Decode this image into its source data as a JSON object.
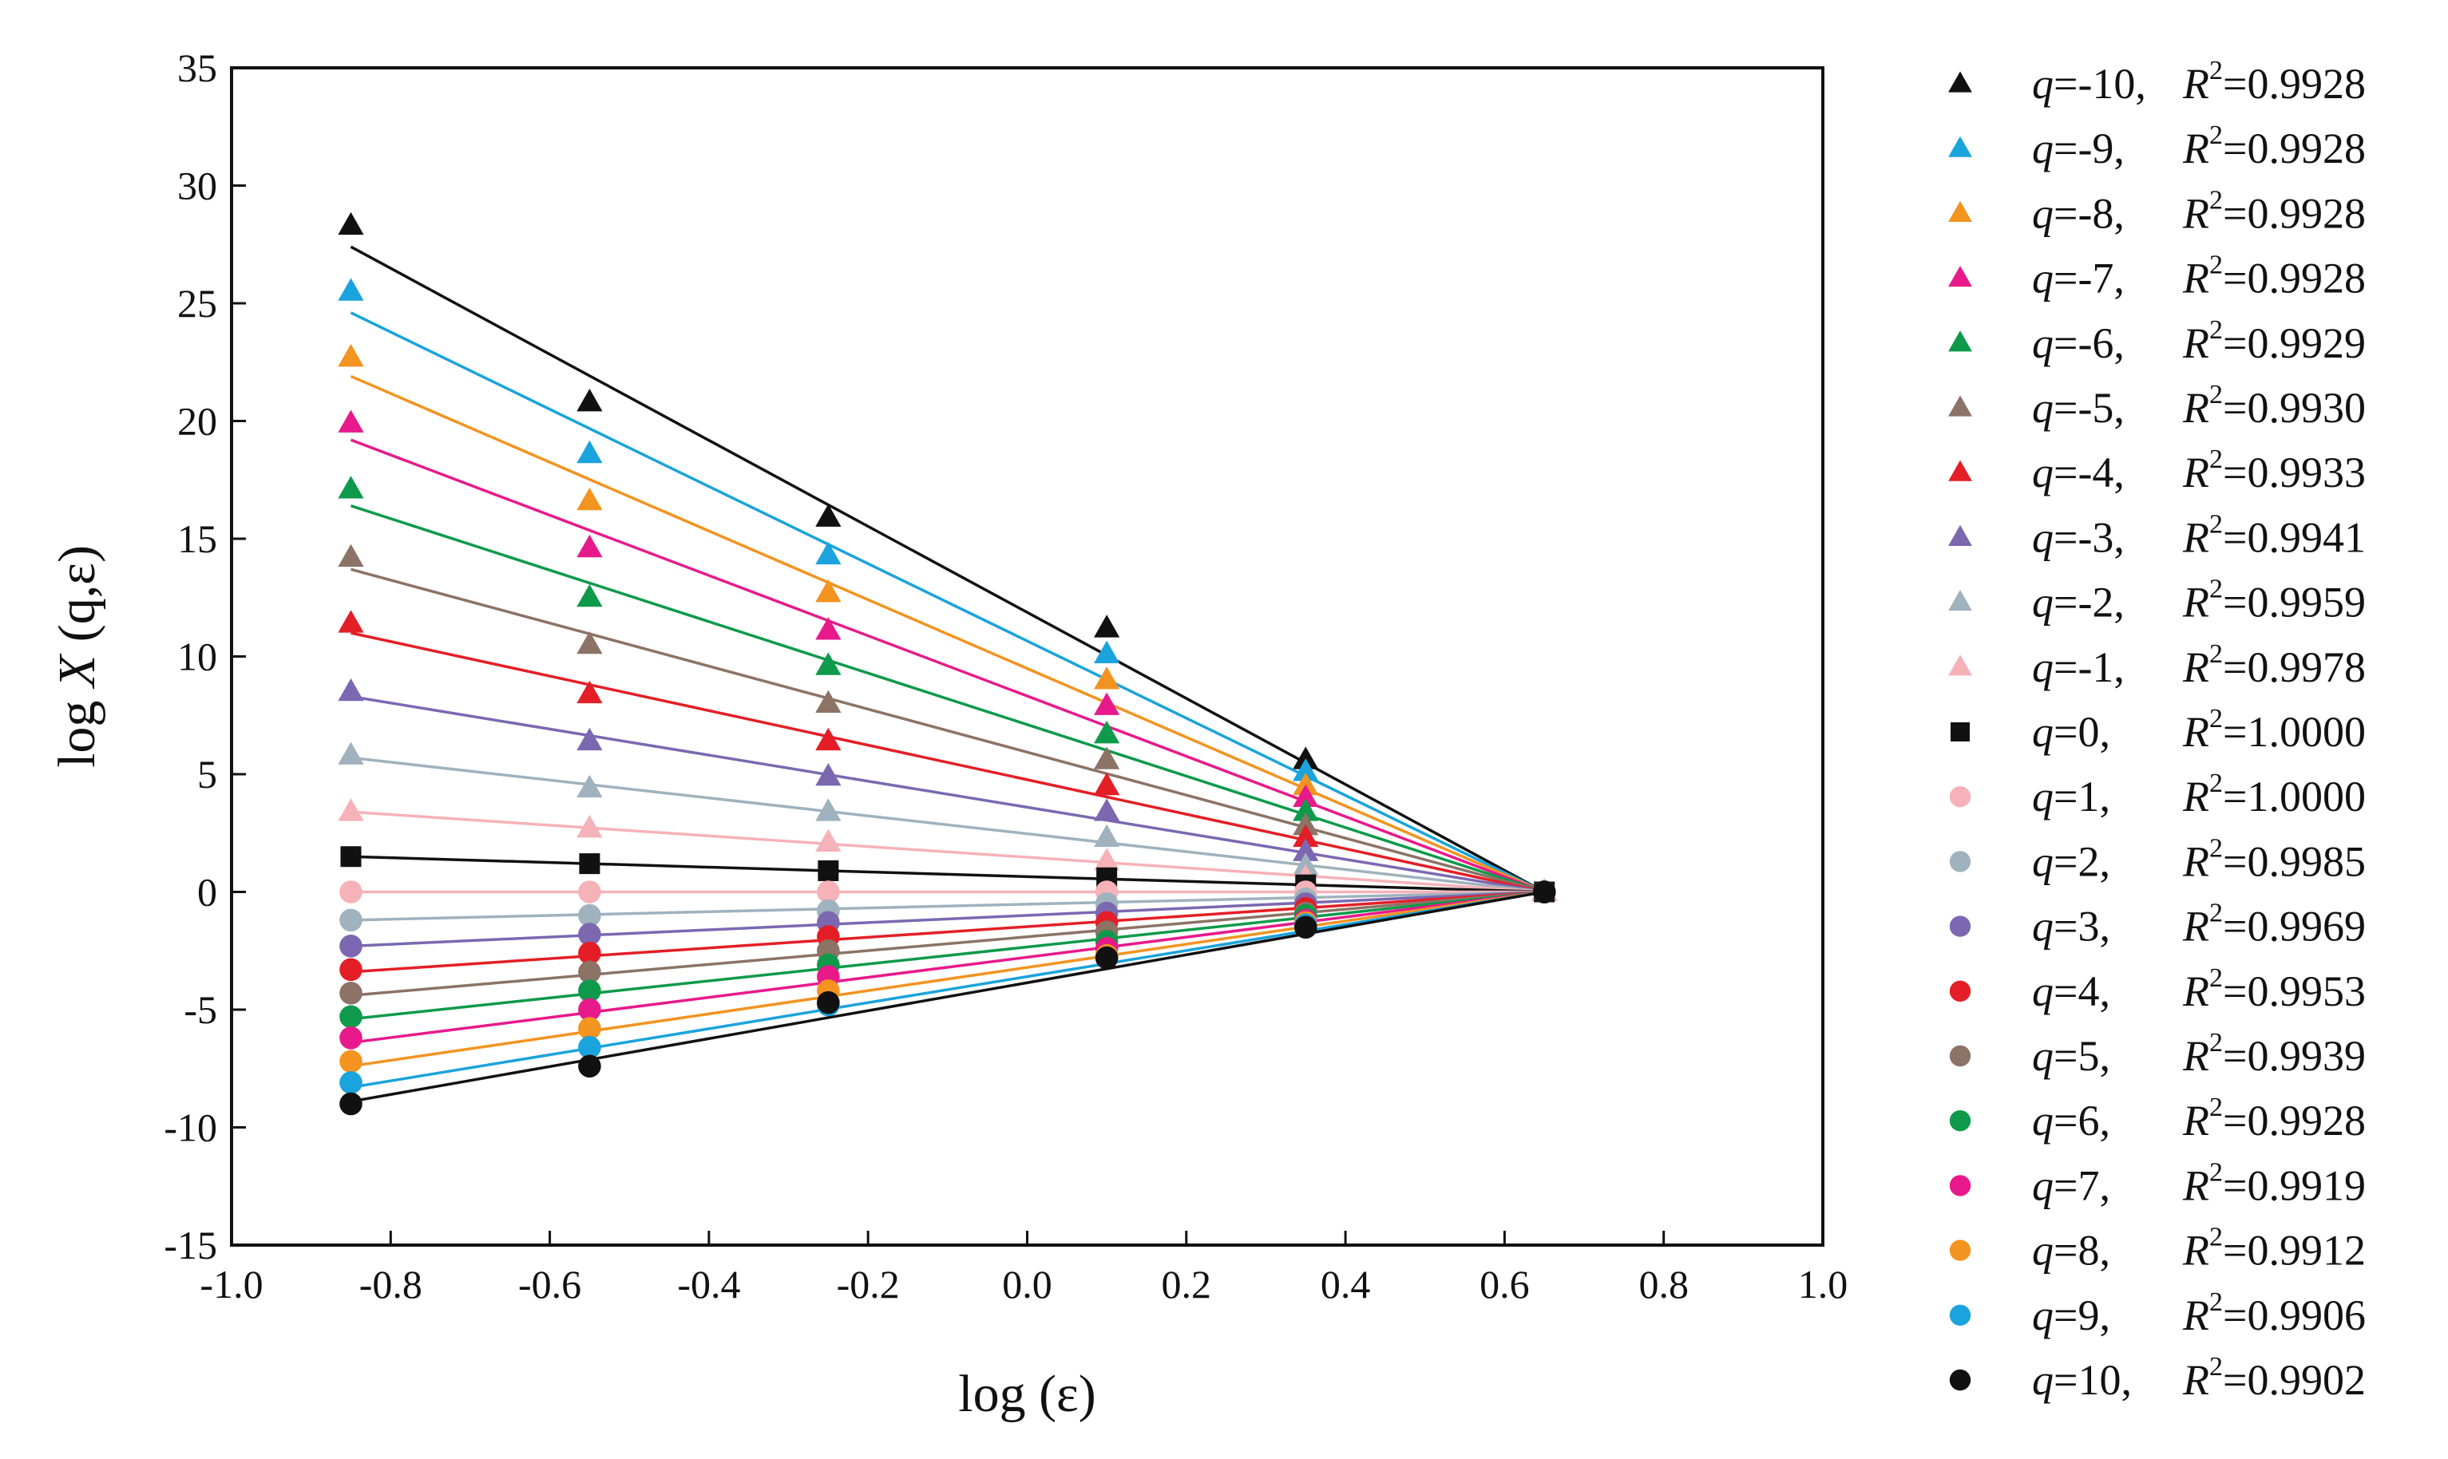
{
  "chart_data": {
    "type": "scatter",
    "title": "",
    "xlabel": "log (ε)",
    "ylabel_parts": {
      "prefix": "log ",
      "var": "X",
      "args": " (q,ε)"
    },
    "xlim": [
      -1.0,
      1.0
    ],
    "ylim": [
      -15,
      35
    ],
    "xticks": [
      "-1.0",
      "-0.8",
      "-0.6",
      "-0.4",
      "-0.2",
      "0.0",
      "0.2",
      "0.4",
      "0.6",
      "0.8",
      "1.0"
    ],
    "yticks": [
      "-15",
      "-10",
      "-5",
      "0",
      "5",
      "10",
      "15",
      "20",
      "25",
      "30",
      "35"
    ],
    "x": [
      -0.85,
      -0.55,
      -0.25,
      0.1,
      0.35,
      0.65
    ],
    "legend_position": "right-outside",
    "series": [
      {
        "q": "-10",
        "r2": "0.9928",
        "marker": "triangle",
        "color": "#111111",
        "values": [
          28.3,
          20.8,
          15.9,
          11.2,
          5.6,
          0
        ],
        "fit": [
          27.4,
          0
        ]
      },
      {
        "q": "-9",
        "r2": "0.9928",
        "marker": "triangle",
        "color": "#1aa3dc",
        "values": [
          25.5,
          18.6,
          14.3,
          10.1,
          5.1,
          0
        ],
        "fit": [
          24.6,
          0
        ]
      },
      {
        "q": "-8",
        "r2": "0.9928",
        "marker": "triangle",
        "color": "#f39320",
        "values": [
          22.7,
          16.6,
          12.7,
          9.0,
          4.5,
          0
        ],
        "fit": [
          21.9,
          0
        ]
      },
      {
        "q": "-7",
        "r2": "0.9928",
        "marker": "triangle",
        "color": "#e8198b",
        "values": [
          19.9,
          14.6,
          11.1,
          7.9,
          4.0,
          0
        ],
        "fit": [
          19.2,
          0
        ]
      },
      {
        "q": "-6",
        "r2": "0.9929",
        "marker": "triangle",
        "color": "#0e9a4a",
        "values": [
          17.1,
          12.5,
          9.6,
          6.7,
          3.4,
          0
        ],
        "fit": [
          16.4,
          0
        ]
      },
      {
        "q": "-5",
        "r2": "0.9930",
        "marker": "triangle",
        "color": "#8c7366",
        "values": [
          14.2,
          10.5,
          8.0,
          5.6,
          2.8,
          0
        ],
        "fit": [
          13.7,
          0
        ]
      },
      {
        "q": "-4",
        "r2": "0.9933",
        "marker": "triangle",
        "color": "#e41e26",
        "values": [
          11.4,
          8.4,
          6.4,
          4.5,
          2.3,
          0
        ],
        "fit": [
          11.0,
          0
        ]
      },
      {
        "q": "-3",
        "r2": "0.9941",
        "marker": "triangle",
        "color": "#7b68b1",
        "values": [
          8.5,
          6.4,
          4.9,
          3.4,
          1.7,
          0
        ],
        "fit": [
          8.3,
          0
        ]
      },
      {
        "q": "-2",
        "r2": "0.9959",
        "marker": "triangle",
        "color": "#9fb2bd",
        "values": [
          5.8,
          4.4,
          3.4,
          2.3,
          1.1,
          0
        ],
        "fit": [
          5.7,
          0
        ]
      },
      {
        "q": "-1",
        "r2": "0.9978",
        "marker": "triangle",
        "color": "#f5b2b8",
        "values": [
          3.4,
          2.7,
          2.1,
          1.3,
          0.6,
          0
        ],
        "fit": [
          3.4,
          0
        ]
      },
      {
        "q": "0",
        "r2": "1.0000",
        "marker": "square",
        "color": "#111111",
        "values": [
          1.5,
          1.2,
          0.9,
          0.6,
          0.3,
          0
        ],
        "fit": [
          1.5,
          0
        ]
      },
      {
        "q": "1",
        "r2": "1.0000",
        "marker": "circle",
        "color": "#f5b2b8",
        "values": [
          0,
          0,
          0,
          0,
          0,
          0
        ],
        "fit": [
          0,
          0
        ]
      },
      {
        "q": "2",
        "r2": "0.9985",
        "marker": "circle",
        "color": "#9fb2bd",
        "values": [
          -1.2,
          -1.0,
          -0.8,
          -0.5,
          -0.3,
          0
        ],
        "fit": [
          -1.2,
          0
        ]
      },
      {
        "q": "3",
        "r2": "0.9969",
        "marker": "circle",
        "color": "#7b68b1",
        "values": [
          -2.3,
          -1.8,
          -1.3,
          -0.9,
          -0.5,
          0
        ],
        "fit": [
          -2.3,
          0
        ]
      },
      {
        "q": "4",
        "r2": "0.9953",
        "marker": "circle",
        "color": "#e41e26",
        "values": [
          -3.3,
          -2.6,
          -1.9,
          -1.3,
          -0.7,
          0
        ],
        "fit": [
          -3.4,
          0
        ]
      },
      {
        "q": "5",
        "r2": "0.9939",
        "marker": "circle",
        "color": "#8c7366",
        "values": [
          -4.3,
          -3.4,
          -2.5,
          -1.7,
          -0.9,
          0
        ],
        "fit": [
          -4.4,
          0
        ]
      },
      {
        "q": "6",
        "r2": "0.9928",
        "marker": "circle",
        "color": "#0e9a4a",
        "values": [
          -5.3,
          -4.2,
          -3.1,
          -2.1,
          -1.0,
          0
        ],
        "fit": [
          -5.4,
          0
        ]
      },
      {
        "q": "7",
        "r2": "0.9919",
        "marker": "circle",
        "color": "#e8198b",
        "values": [
          -6.2,
          -5.0,
          -3.6,
          -2.4,
          -1.2,
          0
        ],
        "fit": [
          -6.4,
          0
        ]
      },
      {
        "q": "8",
        "r2": "0.9912",
        "marker": "circle",
        "color": "#f39320",
        "values": [
          -7.2,
          -5.8,
          -4.2,
          -2.7,
          -1.3,
          0
        ],
        "fit": [
          -7.4,
          0
        ]
      },
      {
        "q": "9",
        "r2": "0.9906",
        "marker": "circle",
        "color": "#1aa3dc",
        "values": [
          -8.1,
          -6.6,
          -4.8,
          -2.8,
          -1.4,
          0
        ],
        "fit": [
          -8.3,
          0
        ]
      },
      {
        "q": "10",
        "r2": "0.9902",
        "marker": "circle",
        "color": "#111111",
        "values": [
          -9.0,
          -7.4,
          -4.7,
          -2.8,
          -1.5,
          0
        ],
        "fit": [
          -8.9,
          0
        ]
      }
    ]
  }
}
